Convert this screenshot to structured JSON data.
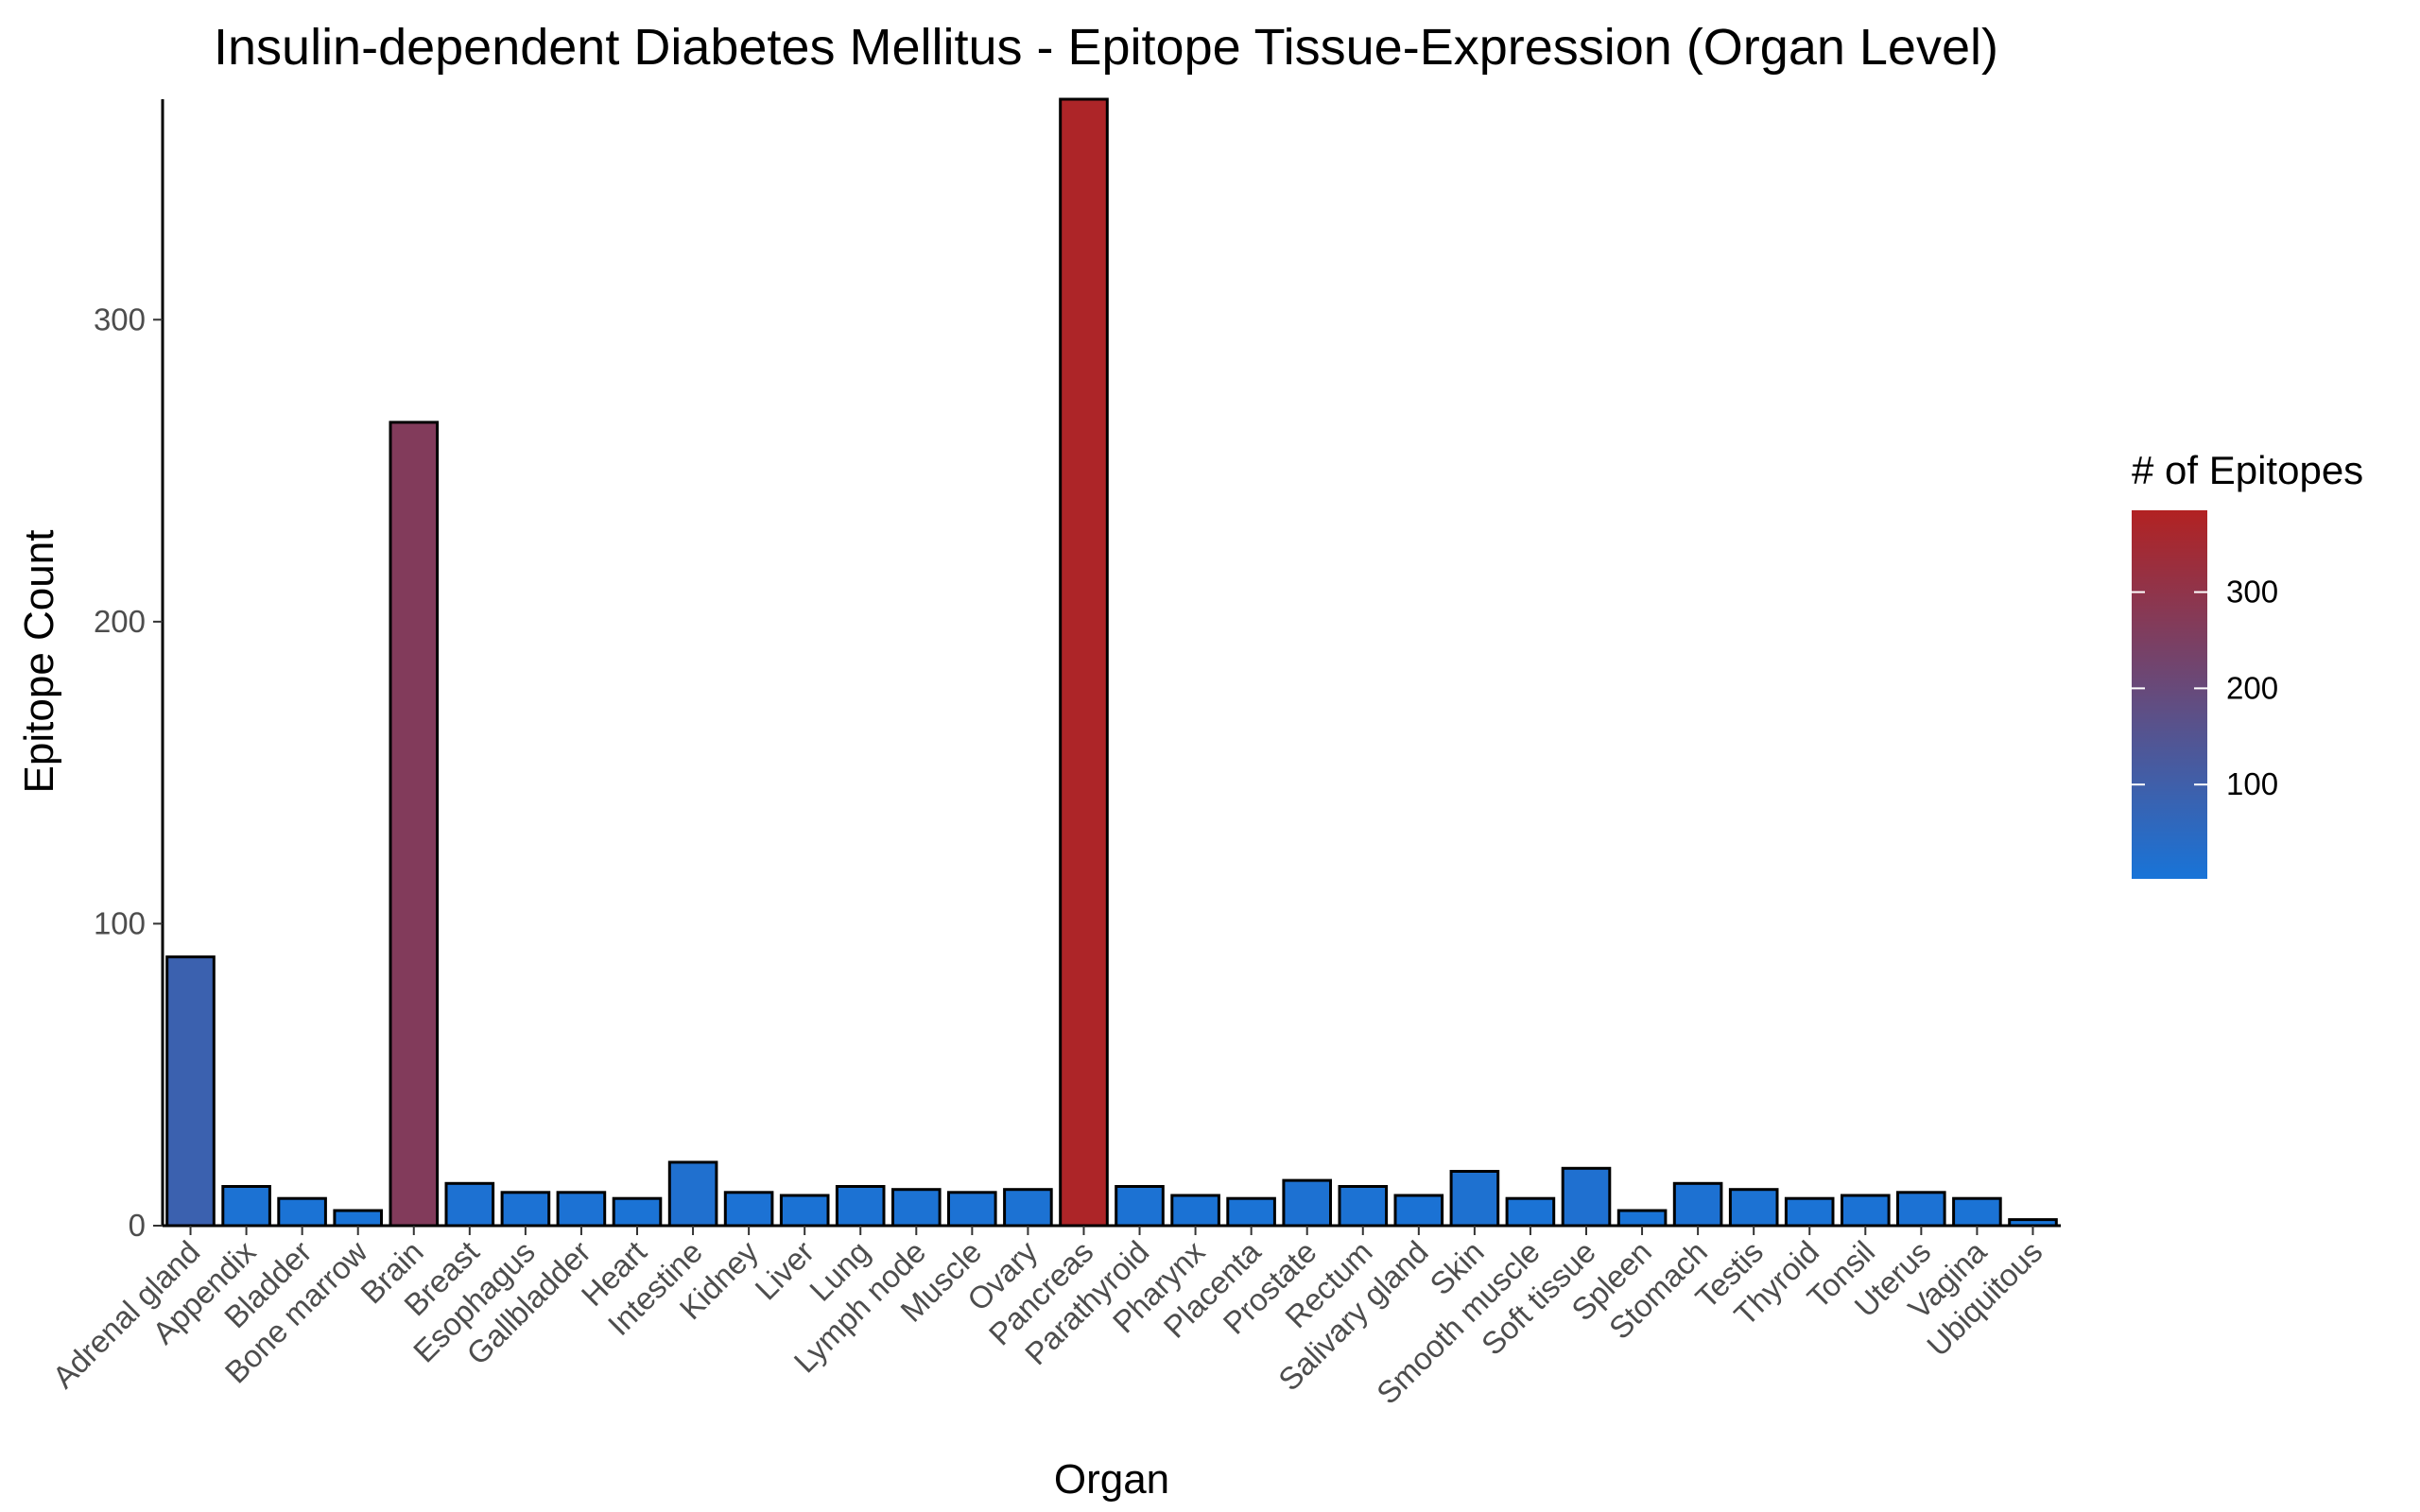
{
  "chart_data": {
    "type": "bar",
    "title": "Insulin-dependent Diabetes Mellitus - Epitope Tissue-Expression (Organ Level)",
    "xlabel": "Organ",
    "ylabel": "Epitope Count",
    "ylim": [
      0,
      373
    ],
    "yticks": [
      0,
      100,
      200,
      300
    ],
    "grid": false,
    "categories": [
      "Adrenal gland",
      "Appendix",
      "Bladder",
      "Bone marrow",
      "Brain",
      "Breast",
      "Esophagus",
      "Gallbladder",
      "Heart",
      "Intestine",
      "Kidney",
      "Liver",
      "Lung",
      "Lymph node",
      "Muscle",
      "Ovary",
      "Pancreas",
      "Parathyroid",
      "Pharynx",
      "Placenta",
      "Prostate",
      "Rectum",
      "Salivary gland",
      "Skin",
      "Smooth muscle",
      "Soft tissue",
      "Spleen",
      "Stomach",
      "Testis",
      "Thyroid",
      "Tonsil",
      "Uterus",
      "Vagina",
      "Ubiquitous"
    ],
    "values": [
      89,
      13,
      9,
      5,
      266,
      14,
      11,
      11,
      9,
      21,
      11,
      10,
      13,
      12,
      11,
      12,
      373,
      13,
      10,
      9,
      15,
      13,
      10,
      18,
      9,
      19,
      5,
      14,
      12,
      9,
      10,
      11,
      9,
      2
    ],
    "legend": {
      "title": "# of Epitopes",
      "position": "right",
      "ticks": [
        100,
        200,
        300
      ],
      "range": [
        2,
        385
      ],
      "low_color": "#1874d8",
      "high_color": "#b22222"
    },
    "bar_outline_color": "#000000"
  }
}
